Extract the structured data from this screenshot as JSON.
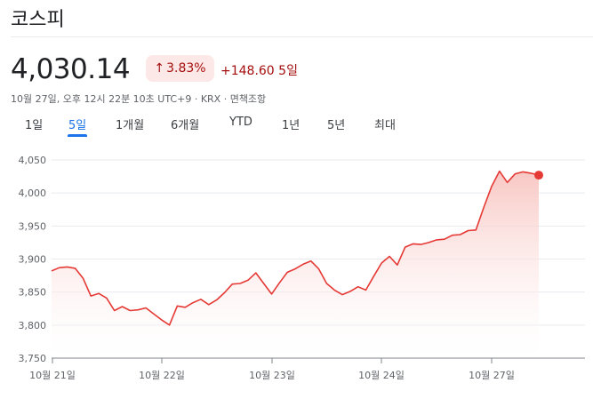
{
  "header": {
    "title": "코스피"
  },
  "quote": {
    "price": "4,030.14",
    "change_pct": "3.83%",
    "change_pct_arrow": "↑",
    "change_abs": "+148.60 5일",
    "meta": "10월 27일, 오후 12시 22분 10초 UTC+9 · KRX · 면책조항"
  },
  "tabs": [
    {
      "label": "1일"
    },
    {
      "label": "5일"
    },
    {
      "label": "1개월"
    },
    {
      "label": "6개월"
    },
    {
      "label": "YTD"
    },
    {
      "label": "1년"
    },
    {
      "label": "5년"
    },
    {
      "label": "최대"
    }
  ],
  "active_tab": "5일",
  "colors": {
    "line": "#e53935",
    "fill_top": "#f8c7c3",
    "accent": "#1a73e8"
  },
  "chart_data": {
    "type": "area",
    "yticks": [
      "4,050",
      "4,000",
      "3,950",
      "3,900",
      "3,850",
      "3,800",
      "3,750"
    ],
    "ytick_values": [
      4050,
      4000,
      3950,
      3900,
      3850,
      3800,
      3750
    ],
    "xticks": [
      "10월 21일",
      "10월 22일",
      "10월 23일",
      "10월 24일",
      "10월 27일"
    ],
    "ylim": [
      3750,
      4050
    ],
    "series": [
      {
        "values": [
          3882,
          3887,
          3888,
          3886,
          3871,
          3844,
          3848,
          3841,
          3822,
          3828,
          3822,
          3823,
          3826,
          3817,
          3808,
          3800,
          3829,
          3827,
          3834,
          3839,
          3831,
          3838,
          3849,
          3862,
          3863,
          3868,
          3879,
          3863,
          3847,
          3864,
          3880,
          3885,
          3892,
          3897,
          3885,
          3863,
          3853,
          3846,
          3851,
          3858,
          3853,
          3874,
          3894,
          3904,
          3891,
          3918,
          3923,
          3922,
          3925,
          3929,
          3930,
          3936,
          3937,
          3943,
          3944,
          3978,
          4010,
          4033,
          4016,
          4029,
          4032,
          4030,
          4027
        ]
      }
    ],
    "x_tick_index": [
      0,
      12.5,
      25,
      37.5,
      50
    ],
    "last_value": 4027,
    "grid": true
  }
}
